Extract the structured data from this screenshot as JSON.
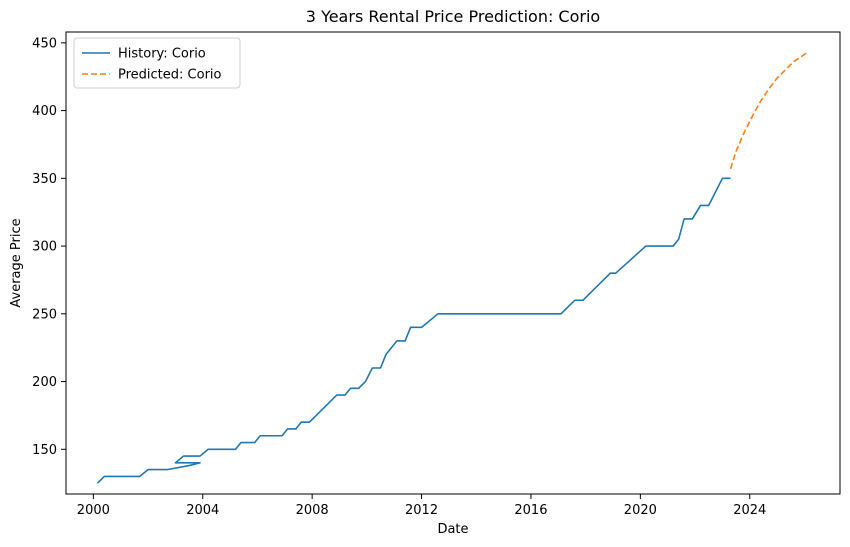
{
  "chart_data": {
    "type": "line",
    "title": "3 Years Rental Price Prediction: Corio",
    "xlabel": "Date",
    "ylabel": "Average Price",
    "xlim": [
      1999.0,
      2027.3
    ],
    "ylim": [
      117,
      458
    ],
    "x_ticks": [
      2000,
      2004,
      2008,
      2012,
      2016,
      2020,
      2024
    ],
    "x_tick_labels": [
      "2000",
      "2004",
      "2008",
      "2012",
      "2016",
      "2020",
      "2024"
    ],
    "y_ticks": [
      150,
      200,
      250,
      300,
      350,
      400,
      450
    ],
    "y_tick_labels": [
      "150",
      "200",
      "250",
      "300",
      "350",
      "400",
      "450"
    ],
    "grid": false,
    "legend_position": "top-left",
    "series": [
      {
        "name": "History: Corio",
        "color": "#1f77b4",
        "style": "solid",
        "x": [
          2000.15,
          2000.4,
          2001.0,
          2001.7,
          2002.0,
          2002.7,
          2003.5,
          2003.9,
          2003.0,
          2003.3,
          2003.9,
          2004.2,
          2005.2,
          2005.4,
          2005.9,
          2006.1,
          2006.9,
          2007.1,
          2007.4,
          2007.6,
          2007.9,
          2008.9,
          2009.2,
          2009.4,
          2009.7,
          2009.95,
          2010.2,
          2010.5,
          2010.7,
          2011.1,
          2011.4,
          2011.6,
          2012.0,
          2012.6,
          2017.1,
          2017.6,
          2017.9,
          2018.9,
          2019.1,
          2020.2,
          2021.2,
          2021.4,
          2021.6,
          2021.9,
          2022.2,
          2022.5,
          2023.0,
          2023.3
        ],
        "y": [
          125,
          130,
          130,
          130,
          135,
          135,
          138,
          140,
          140,
          145,
          145,
          150,
          150,
          155,
          155,
          160,
          160,
          165,
          165,
          170,
          170,
          190,
          190,
          195,
          195,
          200,
          210,
          210,
          220,
          230,
          230,
          240,
          240,
          250,
          250,
          260,
          260,
          280,
          280,
          300,
          300,
          305,
          320,
          320,
          330,
          330,
          350,
          350
        ]
      },
      {
        "name": "Predicted: Corio",
        "color": "#ff7f0e",
        "style": "dashed",
        "x": [
          2023.3,
          2023.5,
          2023.8,
          2024.1,
          2024.4,
          2024.7,
          2025.0,
          2025.3,
          2025.6,
          2025.9,
          2026.1
        ],
        "y": [
          357,
          370,
          384,
          396,
          407,
          416,
          424,
          430,
          436,
          440,
          443
        ]
      }
    ]
  }
}
